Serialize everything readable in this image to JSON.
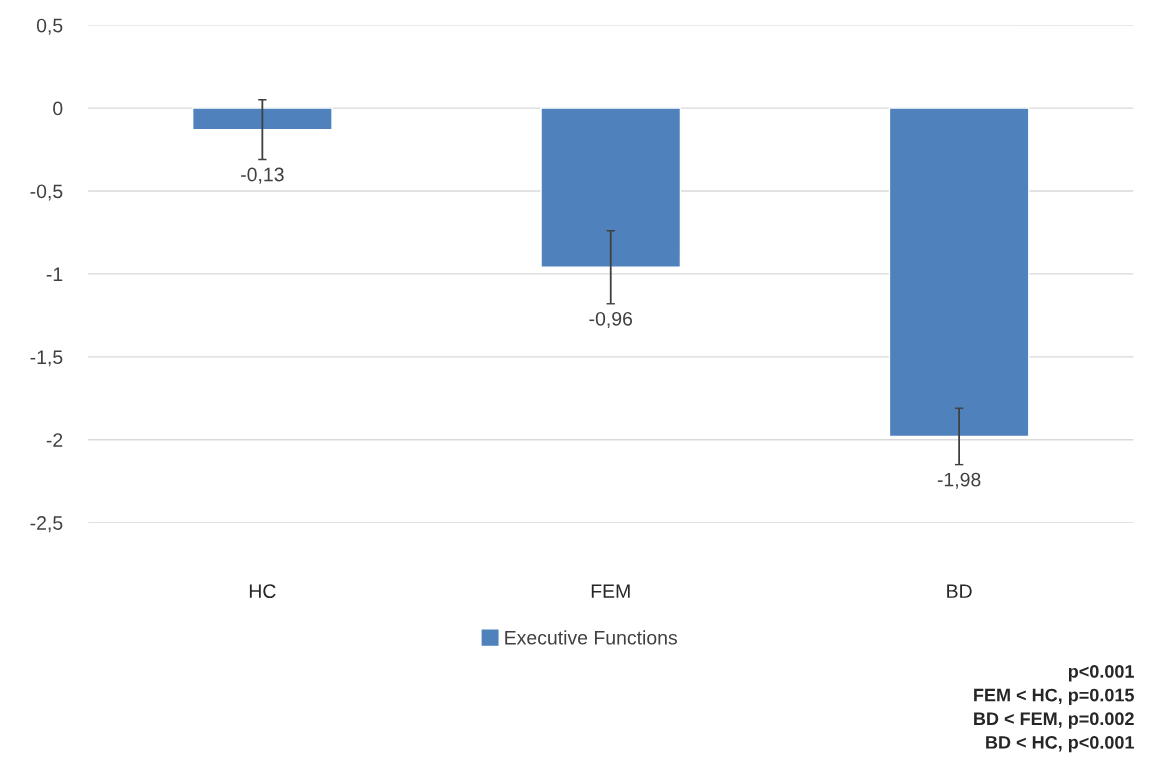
{
  "chart_data": {
    "type": "bar",
    "categories": [
      "HC",
      "FEM",
      "BD"
    ],
    "series": [
      {
        "name": "Executive Functions",
        "color": "#4f81bd",
        "values": [
          -0.13,
          -0.96,
          -1.98
        ],
        "errors": [
          0.18,
          0.22,
          0.17
        ],
        "value_labels": [
          "-0,13",
          "-0,96",
          "-1,98"
        ]
      }
    ],
    "ylim": [
      -2.5,
      0.5
    ],
    "yticks": [
      {
        "value": -2.5,
        "label": "-2,5"
      },
      {
        "value": -2,
        "label": "-2"
      },
      {
        "value": -1.5,
        "label": "-1,5"
      },
      {
        "value": -1,
        "label": "-1"
      },
      {
        "value": -0.5,
        "label": "-0,5"
      },
      {
        "value": 0,
        "label": "0"
      },
      {
        "value": 0.5,
        "label": "0,5"
      }
    ],
    "grid": "y",
    "legend": "bottom",
    "annotations": [
      "p<0.001",
      "FEM < HC, p=0.015",
      "BD < FEM, p=0.002",
      "BD < HC, p<0.001"
    ]
  }
}
